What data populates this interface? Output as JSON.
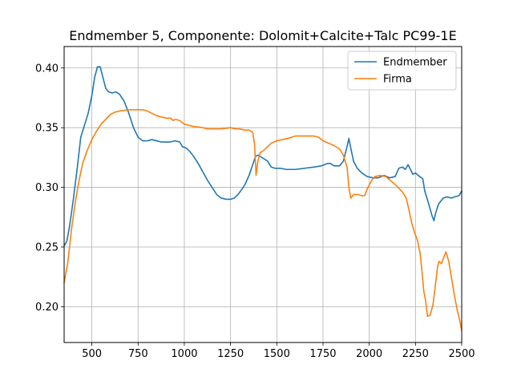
{
  "chart_data": {
    "type": "line",
    "title": "Endmember 5, Componente: Dolomit+Calcite+Talc PC99-1E",
    "xlabel": "",
    "ylabel": "",
    "xlim": [
      350,
      2500
    ],
    "ylim": [
      0.17,
      0.418
    ],
    "xticks": [
      500,
      750,
      1000,
      1250,
      1500,
      1750,
      2000,
      2250,
      2500
    ],
    "yticks": [
      0.2,
      0.25,
      0.3,
      0.35,
      0.4
    ],
    "xtick_labels": [
      "500",
      "750",
      "1000",
      "1250",
      "1500",
      "1750",
      "2000",
      "2250",
      "2500"
    ],
    "ytick_labels": [
      "0.20",
      "0.25",
      "0.30",
      "0.35",
      "0.40"
    ],
    "grid": true,
    "legend_position": "top-right",
    "series": [
      {
        "name": "Endmember",
        "color": "#1f77b4",
        "points": [
          [
            350,
            0.251
          ],
          [
            365,
            0.255
          ],
          [
            380,
            0.268
          ],
          [
            400,
            0.29
          ],
          [
            420,
            0.315
          ],
          [
            440,
            0.342
          ],
          [
            460,
            0.352
          ],
          [
            480,
            0.362
          ],
          [
            500,
            0.377
          ],
          [
            515,
            0.392
          ],
          [
            530,
            0.401
          ],
          [
            545,
            0.401
          ],
          [
            560,
            0.392
          ],
          [
            575,
            0.383
          ],
          [
            590,
            0.38
          ],
          [
            610,
            0.379
          ],
          [
            630,
            0.38
          ],
          [
            650,
            0.378
          ],
          [
            675,
            0.372
          ],
          [
            700,
            0.362
          ],
          [
            725,
            0.35
          ],
          [
            750,
            0.342
          ],
          [
            775,
            0.339
          ],
          [
            800,
            0.339
          ],
          [
            825,
            0.34
          ],
          [
            850,
            0.339
          ],
          [
            875,
            0.338
          ],
          [
            900,
            0.338
          ],
          [
            925,
            0.338
          ],
          [
            950,
            0.339
          ],
          [
            975,
            0.338
          ],
          [
            990,
            0.334
          ],
          [
            1010,
            0.333
          ],
          [
            1030,
            0.33
          ],
          [
            1050,
            0.326
          ],
          [
            1075,
            0.32
          ],
          [
            1100,
            0.313
          ],
          [
            1125,
            0.306
          ],
          [
            1150,
            0.3
          ],
          [
            1175,
            0.294
          ],
          [
            1200,
            0.291
          ],
          [
            1225,
            0.29
          ],
          [
            1250,
            0.29
          ],
          [
            1270,
            0.291
          ],
          [
            1290,
            0.294
          ],
          [
            1310,
            0.298
          ],
          [
            1330,
            0.303
          ],
          [
            1350,
            0.31
          ],
          [
            1370,
            0.319
          ],
          [
            1385,
            0.326
          ],
          [
            1400,
            0.327
          ],
          [
            1420,
            0.325
          ],
          [
            1450,
            0.322
          ],
          [
            1470,
            0.317
          ],
          [
            1490,
            0.316
          ],
          [
            1520,
            0.316
          ],
          [
            1550,
            0.315
          ],
          [
            1600,
            0.315
          ],
          [
            1650,
            0.316
          ],
          [
            1700,
            0.317
          ],
          [
            1740,
            0.318
          ],
          [
            1775,
            0.32
          ],
          [
            1790,
            0.32
          ],
          [
            1810,
            0.318
          ],
          [
            1840,
            0.318
          ],
          [
            1860,
            0.322
          ],
          [
            1880,
            0.334
          ],
          [
            1890,
            0.341
          ],
          [
            1900,
            0.333
          ],
          [
            1915,
            0.322
          ],
          [
            1935,
            0.316
          ],
          [
            1960,
            0.312
          ],
          [
            1990,
            0.309
          ],
          [
            2020,
            0.308
          ],
          [
            2050,
            0.308
          ],
          [
            2080,
            0.31
          ],
          [
            2110,
            0.308
          ],
          [
            2140,
            0.309
          ],
          [
            2160,
            0.316
          ],
          [
            2180,
            0.317
          ],
          [
            2195,
            0.315
          ],
          [
            2210,
            0.319
          ],
          [
            2220,
            0.316
          ],
          [
            2235,
            0.311
          ],
          [
            2250,
            0.312
          ],
          [
            2265,
            0.31
          ],
          [
            2290,
            0.307
          ],
          [
            2300,
            0.297
          ],
          [
            2320,
            0.287
          ],
          [
            2340,
            0.276
          ],
          [
            2350,
            0.272
          ],
          [
            2360,
            0.279
          ],
          [
            2375,
            0.286
          ],
          [
            2400,
            0.291
          ],
          [
            2420,
            0.292
          ],
          [
            2445,
            0.291
          ],
          [
            2460,
            0.292
          ],
          [
            2485,
            0.293
          ],
          [
            2500,
            0.297
          ]
        ]
      },
      {
        "name": "Firma",
        "color": "#ff7f0e",
        "points": [
          [
            350,
            0.22
          ],
          [
            370,
            0.237
          ],
          [
            390,
            0.265
          ],
          [
            410,
            0.287
          ],
          [
            430,
            0.305
          ],
          [
            450,
            0.32
          ],
          [
            475,
            0.331
          ],
          [
            500,
            0.34
          ],
          [
            525,
            0.347
          ],
          [
            550,
            0.353
          ],
          [
            575,
            0.357
          ],
          [
            600,
            0.361
          ],
          [
            625,
            0.363
          ],
          [
            650,
            0.364
          ],
          [
            700,
            0.365
          ],
          [
            750,
            0.365
          ],
          [
            775,
            0.365
          ],
          [
            800,
            0.364
          ],
          [
            825,
            0.362
          ],
          [
            850,
            0.36
          ],
          [
            875,
            0.359
          ],
          [
            900,
            0.358
          ],
          [
            925,
            0.358
          ],
          [
            940,
            0.356
          ],
          [
            950,
            0.357
          ],
          [
            975,
            0.356
          ],
          [
            1000,
            0.353
          ],
          [
            1025,
            0.352
          ],
          [
            1050,
            0.351
          ],
          [
            1100,
            0.35
          ],
          [
            1125,
            0.349
          ],
          [
            1150,
            0.349
          ],
          [
            1200,
            0.349
          ],
          [
            1250,
            0.35
          ],
          [
            1275,
            0.349
          ],
          [
            1300,
            0.349
          ],
          [
            1325,
            0.348
          ],
          [
            1350,
            0.348
          ],
          [
            1370,
            0.346
          ],
          [
            1380,
            0.336
          ],
          [
            1388,
            0.31
          ],
          [
            1398,
            0.322
          ],
          [
            1410,
            0.329
          ],
          [
            1430,
            0.331
          ],
          [
            1450,
            0.334
          ],
          [
            1470,
            0.337
          ],
          [
            1500,
            0.339
          ],
          [
            1530,
            0.34
          ],
          [
            1560,
            0.341
          ],
          [
            1600,
            0.343
          ],
          [
            1650,
            0.343
          ],
          [
            1700,
            0.343
          ],
          [
            1725,
            0.342
          ],
          [
            1750,
            0.339
          ],
          [
            1780,
            0.337
          ],
          [
            1810,
            0.335
          ],
          [
            1840,
            0.332
          ],
          [
            1860,
            0.327
          ],
          [
            1880,
            0.317
          ],
          [
            1890,
            0.3
          ],
          [
            1900,
            0.291
          ],
          [
            1915,
            0.294
          ],
          [
            1940,
            0.294
          ],
          [
            1960,
            0.293
          ],
          [
            1975,
            0.293
          ],
          [
            1990,
            0.299
          ],
          [
            2010,
            0.305
          ],
          [
            2030,
            0.309
          ],
          [
            2060,
            0.31
          ],
          [
            2090,
            0.309
          ],
          [
            2120,
            0.305
          ],
          [
            2150,
            0.301
          ],
          [
            2180,
            0.296
          ],
          [
            2200,
            0.291
          ],
          [
            2215,
            0.281
          ],
          [
            2230,
            0.27
          ],
          [
            2245,
            0.262
          ],
          [
            2260,
            0.256
          ],
          [
            2275,
            0.245
          ],
          [
            2285,
            0.23
          ],
          [
            2295,
            0.213
          ],
          [
            2305,
            0.205
          ],
          [
            2315,
            0.192
          ],
          [
            2330,
            0.193
          ],
          [
            2345,
            0.202
          ],
          [
            2360,
            0.221
          ],
          [
            2370,
            0.234
          ],
          [
            2378,
            0.238
          ],
          [
            2390,
            0.236
          ],
          [
            2400,
            0.24
          ],
          [
            2415,
            0.246
          ],
          [
            2430,
            0.238
          ],
          [
            2445,
            0.224
          ],
          [
            2460,
            0.21
          ],
          [
            2475,
            0.198
          ],
          [
            2490,
            0.188
          ],
          [
            2500,
            0.18
          ]
        ]
      }
    ]
  }
}
